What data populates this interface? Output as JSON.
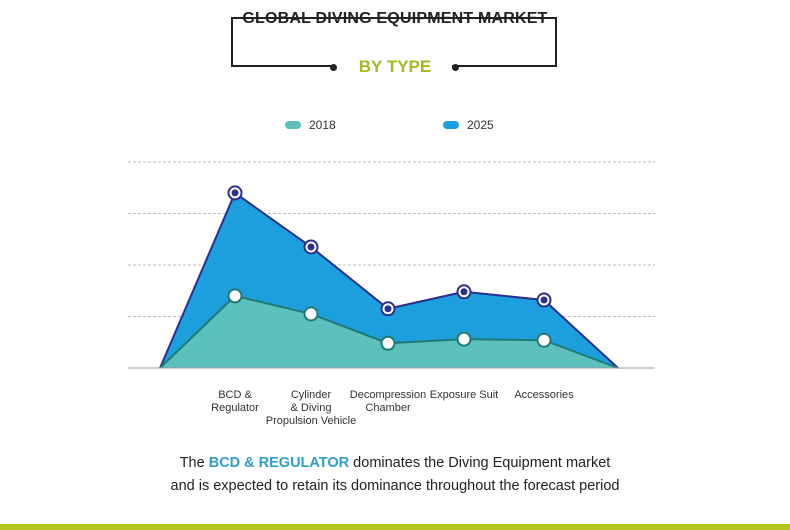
{
  "header": {
    "title": "GLOBAL DIVING EQUIPMENT MARKET",
    "subtitle": "BY TYPE"
  },
  "colors": {
    "subtitle": "#a8b820",
    "series_2018_fill": "#5cc0bd",
    "series_2018_line": "#1f7a72",
    "series_2025_fill": "#1d9fdd",
    "series_2025_line": "#2b2f8f",
    "grid": "#bbbbbb",
    "highlight": "#2e9fc9",
    "bottom_bar": "#b6c41f"
  },
  "chart_data": {
    "type": "area",
    "categories": [
      "BCD & Regulator",
      "Cylinder & Diving Propulsion Vehicle",
      "Decompression Chamber",
      "Exposure Suit",
      "Accessories"
    ],
    "category_labels": [
      [
        "BCD &",
        "Regulator"
      ],
      [
        "Cylinder",
        "& Diving",
        "Propulsion Vehicle"
      ],
      [
        "Decompression",
        "Chamber"
      ],
      [
        "Exposure Suit"
      ],
      [
        "Accessories"
      ]
    ],
    "series": [
      {
        "name": "2018",
        "values": [
          1.4,
          1.05,
          0.48,
          0.56,
          0.54
        ]
      },
      {
        "name": "2025",
        "values": [
          3.4,
          2.35,
          1.15,
          1.48,
          1.32
        ]
      }
    ],
    "ylim": [
      0,
      4
    ],
    "grid": true,
    "legend": "top-center",
    "xlabel": "",
    "ylabel": ""
  },
  "caption": {
    "before": "The ",
    "highlight": "BCD & REGULATOR",
    "after": " dominates the Diving Equipment market",
    "line2": "and is expected to retain its dominance throughout the forecast period"
  }
}
